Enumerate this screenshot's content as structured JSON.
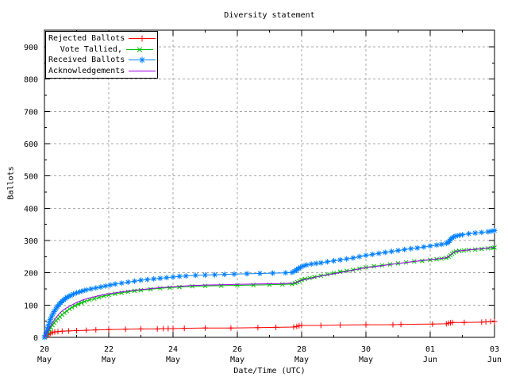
{
  "window": {
    "background": "#ffffff"
  },
  "chart_data": {
    "type": "line",
    "title": "Diversity statement",
    "xlabel": "Date/Time (UTC)",
    "ylabel": "Ballots",
    "grid": {
      "enabled": true,
      "color": "#a8a8a8",
      "dash": "3,3"
    },
    "legend": {
      "position": "top-left",
      "border": "#000000"
    },
    "y_axis": {
      "min": 0,
      "max": 950,
      "tick_step": 100,
      "minor_step": 50,
      "ticks": [
        0,
        100,
        200,
        300,
        400,
        500,
        600,
        700,
        800,
        900
      ]
    },
    "x_axis": {
      "days_span": 14,
      "major_ticks": [
        {
          "day": 0,
          "line1": "20",
          "line2": "May"
        },
        {
          "day": 2,
          "line1": "22",
          "line2": "May"
        },
        {
          "day": 4,
          "line1": "24",
          "line2": "May"
        },
        {
          "day": 6,
          "line1": "26",
          "line2": "May"
        },
        {
          "day": 8,
          "line1": "28",
          "line2": "May"
        },
        {
          "day": 10,
          "line1": "30",
          "line2": "May"
        },
        {
          "day": 12,
          "line1": "01",
          "line2": "Jun"
        },
        {
          "day": 14,
          "line1": "03",
          "line2": "Jun"
        }
      ],
      "minor_tick_days": [
        1,
        3,
        5,
        7,
        9,
        11,
        13
      ]
    },
    "series": [
      {
        "name": "Rejected Ballots",
        "color": "#ff0000",
        "marker": "plus",
        "points": [
          [
            0,
            0
          ],
          [
            0.07,
            4
          ],
          [
            0.12,
            8
          ],
          [
            0.18,
            12
          ],
          [
            0.25,
            15
          ],
          [
            0.32,
            17
          ],
          [
            0.42,
            18
          ],
          [
            0.55,
            19
          ],
          [
            0.75,
            20
          ],
          [
            1.0,
            21
          ],
          [
            1.3,
            22
          ],
          [
            1.6,
            23
          ],
          [
            2.0,
            24
          ],
          [
            2.52,
            25
          ],
          [
            3.0,
            26
          ],
          [
            3.51,
            26
          ],
          [
            3.7,
            27
          ],
          [
            3.85,
            27
          ],
          [
            4.0,
            27
          ],
          [
            4.35,
            28
          ],
          [
            5.0,
            29
          ],
          [
            5.8,
            29
          ],
          [
            6.64,
            30
          ],
          [
            7.2,
            31
          ],
          [
            7.75,
            32
          ],
          [
            7.85,
            34
          ],
          [
            7.92,
            36
          ],
          [
            8.0,
            37
          ],
          [
            8.6,
            37
          ],
          [
            9.2,
            38
          ],
          [
            10.0,
            39
          ],
          [
            10.84,
            39
          ],
          [
            11.09,
            40
          ],
          [
            12.07,
            41
          ],
          [
            12.5,
            42
          ],
          [
            12.57,
            44
          ],
          [
            12.63,
            45
          ],
          [
            12.69,
            46
          ],
          [
            13.06,
            46
          ],
          [
            13.6,
            47
          ],
          [
            13.73,
            48
          ],
          [
            13.88,
            49
          ],
          [
            14.0,
            49
          ]
        ]
      },
      {
        "name": "Vote Tallied,",
        "color": "#00c000",
        "marker": "cross",
        "points": [
          [
            0,
            0
          ],
          [
            0.04,
            4
          ],
          [
            0.08,
            10
          ],
          [
            0.12,
            17
          ],
          [
            0.16,
            24
          ],
          [
            0.2,
            31
          ],
          [
            0.25,
            38
          ],
          [
            0.3,
            45
          ],
          [
            0.36,
            52
          ],
          [
            0.42,
            58
          ],
          [
            0.48,
            64
          ],
          [
            0.55,
            70
          ],
          [
            0.62,
            76
          ],
          [
            0.7,
            82
          ],
          [
            0.78,
            88
          ],
          [
            0.86,
            93
          ],
          [
            0.95,
            98
          ],
          [
            1.05,
            103
          ],
          [
            1.15,
            107
          ],
          [
            1.25,
            111
          ],
          [
            1.4,
            116
          ],
          [
            1.55,
            120
          ],
          [
            1.7,
            124
          ],
          [
            1.85,
            128
          ],
          [
            2.0,
            131
          ],
          [
            2.2,
            135
          ],
          [
            2.4,
            138
          ],
          [
            2.6,
            141
          ],
          [
            2.8,
            144
          ],
          [
            3.0,
            146
          ],
          [
            3.3,
            149
          ],
          [
            3.6,
            152
          ],
          [
            3.9,
            154
          ],
          [
            4.2,
            156
          ],
          [
            4.6,
            158
          ],
          [
            5.0,
            159
          ],
          [
            5.5,
            160
          ],
          [
            6.0,
            161
          ],
          [
            6.5,
            162
          ],
          [
            7.0,
            163
          ],
          [
            7.4,
            164
          ],
          [
            7.7,
            165
          ],
          [
            7.8,
            168
          ],
          [
            7.87,
            171
          ],
          [
            7.93,
            174
          ],
          [
            8.0,
            178
          ],
          [
            8.1,
            181
          ],
          [
            8.25,
            184
          ],
          [
            8.4,
            187
          ],
          [
            8.6,
            191
          ],
          [
            8.8,
            195
          ],
          [
            9.0,
            199
          ],
          [
            9.2,
            203
          ],
          [
            9.4,
            206
          ],
          [
            9.6,
            209
          ],
          [
            9.8,
            213
          ],
          [
            10.0,
            217
          ],
          [
            10.25,
            220
          ],
          [
            10.5,
            223
          ],
          [
            10.75,
            226
          ],
          [
            11.0,
            229
          ],
          [
            11.25,
            232
          ],
          [
            11.5,
            235
          ],
          [
            11.75,
            237
          ],
          [
            12.0,
            240
          ],
          [
            12.2,
            242
          ],
          [
            12.35,
            244
          ],
          [
            12.5,
            246
          ],
          [
            12.58,
            249
          ],
          [
            12.63,
            254
          ],
          [
            12.68,
            259
          ],
          [
            12.73,
            263
          ],
          [
            12.8,
            266
          ],
          [
            12.9,
            268
          ],
          [
            13.05,
            269
          ],
          [
            13.2,
            271
          ],
          [
            13.4,
            272
          ],
          [
            13.6,
            274
          ],
          [
            13.8,
            276
          ],
          [
            13.95,
            277
          ],
          [
            14.0,
            278
          ]
        ]
      },
      {
        "name": "Received Ballots",
        "color": "#0080ff",
        "marker": "star",
        "points": [
          [
            0,
            0
          ],
          [
            0.03,
            7
          ],
          [
            0.06,
            16
          ],
          [
            0.09,
            26
          ],
          [
            0.12,
            36
          ],
          [
            0.15,
            46
          ],
          [
            0.18,
            55
          ],
          [
            0.22,
            64
          ],
          [
            0.26,
            72
          ],
          [
            0.3,
            80
          ],
          [
            0.35,
            88
          ],
          [
            0.4,
            95
          ],
          [
            0.45,
            101
          ],
          [
            0.5,
            107
          ],
          [
            0.55,
            112
          ],
          [
            0.6,
            116
          ],
          [
            0.65,
            120
          ],
          [
            0.7,
            124
          ],
          [
            0.76,
            127
          ],
          [
            0.82,
            130
          ],
          [
            0.9,
            134
          ],
          [
            1.0,
            138
          ],
          [
            1.1,
            141
          ],
          [
            1.2,
            144
          ],
          [
            1.3,
            147
          ],
          [
            1.45,
            150
          ],
          [
            1.6,
            153
          ],
          [
            1.75,
            156
          ],
          [
            1.9,
            159
          ],
          [
            2.05,
            162
          ],
          [
            2.2,
            165
          ],
          [
            2.4,
            168
          ],
          [
            2.6,
            171
          ],
          [
            2.8,
            174
          ],
          [
            3.0,
            177
          ],
          [
            3.2,
            179
          ],
          [
            3.4,
            181
          ],
          [
            3.6,
            183
          ],
          [
            3.8,
            185
          ],
          [
            4.0,
            187
          ],
          [
            4.2,
            189
          ],
          [
            4.4,
            190
          ],
          [
            4.7,
            192
          ],
          [
            5.0,
            193
          ],
          [
            5.3,
            194
          ],
          [
            5.6,
            195
          ],
          [
            5.9,
            196
          ],
          [
            6.3,
            197
          ],
          [
            6.7,
            198
          ],
          [
            7.1,
            199
          ],
          [
            7.5,
            200
          ],
          [
            7.7,
            201
          ],
          [
            7.78,
            205
          ],
          [
            7.84,
            209
          ],
          [
            7.9,
            213
          ],
          [
            7.96,
            217
          ],
          [
            8.05,
            221
          ],
          [
            8.15,
            224
          ],
          [
            8.3,
            227
          ],
          [
            8.45,
            229
          ],
          [
            8.6,
            231
          ],
          [
            8.8,
            234
          ],
          [
            9.0,
            237
          ],
          [
            9.2,
            240
          ],
          [
            9.4,
            243
          ],
          [
            9.6,
            246
          ],
          [
            9.8,
            250
          ],
          [
            10.0,
            254
          ],
          [
            10.2,
            257
          ],
          [
            10.4,
            260
          ],
          [
            10.6,
            263
          ],
          [
            10.8,
            266
          ],
          [
            11.0,
            269
          ],
          [
            11.2,
            272
          ],
          [
            11.4,
            275
          ],
          [
            11.6,
            277
          ],
          [
            11.8,
            280
          ],
          [
            12.0,
            283
          ],
          [
            12.2,
            286
          ],
          [
            12.35,
            288
          ],
          [
            12.5,
            291
          ],
          [
            12.56,
            294
          ],
          [
            12.6,
            299
          ],
          [
            12.64,
            304
          ],
          [
            12.68,
            308
          ],
          [
            12.73,
            311
          ],
          [
            12.8,
            314
          ],
          [
            12.9,
            316
          ],
          [
            13.0,
            318
          ],
          [
            13.2,
            321
          ],
          [
            13.4,
            323
          ],
          [
            13.6,
            325
          ],
          [
            13.8,
            327
          ],
          [
            13.9,
            329
          ],
          [
            14.0,
            331
          ]
        ]
      },
      {
        "name": "Acknowledgements",
        "color": "#a000f0",
        "marker": "none",
        "points": [
          [
            0,
            0
          ],
          [
            0.08,
            15
          ],
          [
            0.16,
            30
          ],
          [
            0.25,
            45
          ],
          [
            0.35,
            60
          ],
          [
            0.45,
            72
          ],
          [
            0.55,
            82
          ],
          [
            0.7,
            92
          ],
          [
            0.85,
            100
          ],
          [
            1.0,
            108
          ],
          [
            1.2,
            116
          ],
          [
            1.4,
            122
          ],
          [
            1.7,
            129
          ],
          [
            2.0,
            135
          ],
          [
            2.4,
            141
          ],
          [
            2.8,
            146
          ],
          [
            3.2,
            150
          ],
          [
            3.6,
            154
          ],
          [
            4.0,
            157
          ],
          [
            4.5,
            160
          ],
          [
            5.0,
            162
          ],
          [
            5.5,
            163
          ],
          [
            6.0,
            164
          ],
          [
            6.5,
            165
          ],
          [
            7.0,
            166
          ],
          [
            7.5,
            167
          ],
          [
            7.75,
            168
          ],
          [
            7.85,
            171
          ],
          [
            7.95,
            175
          ],
          [
            8.1,
            179
          ],
          [
            8.3,
            183
          ],
          [
            8.6,
            190
          ],
          [
            9.0,
            197
          ],
          [
            9.4,
            204
          ],
          [
            9.8,
            212
          ],
          [
            10.0,
            216
          ],
          [
            10.5,
            222
          ],
          [
            11.0,
            229
          ],
          [
            11.5,
            235
          ],
          [
            12.0,
            241
          ],
          [
            12.3,
            244
          ],
          [
            12.5,
            247
          ],
          [
            12.6,
            253
          ],
          [
            12.68,
            260
          ],
          [
            12.75,
            265
          ],
          [
            12.85,
            267
          ],
          [
            13.0,
            269
          ],
          [
            13.3,
            272
          ],
          [
            13.6,
            275
          ],
          [
            14.0,
            279
          ]
        ]
      }
    ]
  }
}
